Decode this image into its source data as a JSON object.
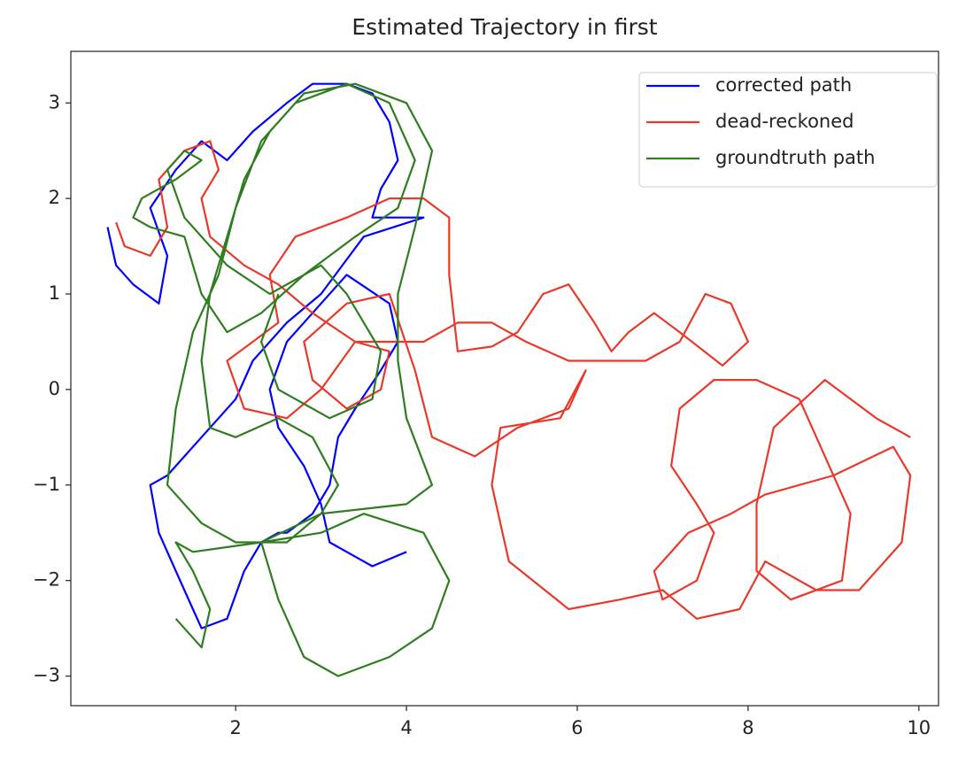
{
  "chart_data": {
    "type": "line",
    "title": "Estimated Trajectory in first",
    "xlim": [
      0.07,
      10.23
    ],
    "ylim": [
      -3.31,
      3.54
    ],
    "xticks": [
      2,
      4,
      6,
      8,
      10
    ],
    "yticks": [
      {
        "value": -3,
        "label": "−3"
      },
      {
        "value": -2,
        "label": "−2"
      },
      {
        "value": -1,
        "label": "−1"
      },
      0,
      1,
      2,
      3
    ],
    "legend": "upper right",
    "series": [
      {
        "name": "corrected path",
        "color": "#0000ff",
        "x": [
          0.5,
          0.6,
          0.8,
          1.1,
          1.2,
          1.0,
          1.3,
          1.6,
          1.9,
          2.2,
          2.6,
          2.9,
          3.3,
          3.6,
          3.8,
          3.9,
          3.7,
          3.6,
          3.8,
          4.2,
          3.5,
          3.0,
          2.6,
          2.2,
          2.0,
          1.8,
          1.6,
          1.4,
          1.2,
          1.0,
          1.1,
          1.3,
          1.5,
          1.6,
          1.9,
          2.1,
          2.3,
          2.5,
          2.6,
          2.9,
          3.1,
          3.2,
          3.4,
          3.7,
          3.9,
          3.8,
          3.3,
          3.0,
          2.6,
          2.4,
          2.5,
          2.8,
          3.0,
          3.1,
          3.6,
          4.0
        ],
        "values": [
          1.7,
          1.3,
          1.1,
          0.9,
          1.4,
          1.9,
          2.3,
          2.6,
          2.4,
          2.7,
          3.0,
          3.2,
          3.2,
          3.1,
          2.8,
          2.4,
          2.1,
          1.8,
          1.8,
          1.8,
          1.6,
          1.0,
          0.7,
          0.3,
          -0.1,
          -0.3,
          -0.5,
          -0.7,
          -0.9,
          -1.0,
          -1.5,
          -1.9,
          -2.3,
          -2.5,
          -2.4,
          -1.9,
          -1.6,
          -1.5,
          -1.5,
          -1.3,
          -1.0,
          -0.5,
          -0.2,
          0.2,
          0.5,
          0.9,
          1.2,
          0.9,
          0.5,
          0.0,
          -0.4,
          -0.8,
          -1.2,
          -1.6,
          -1.85,
          -1.7
        ]
      },
      {
        "name": "dead-reckoned",
        "color": "#e8392b",
        "x": [
          0.6,
          0.7,
          1.0,
          1.2,
          1.1,
          1.4,
          1.7,
          1.8,
          1.6,
          1.7,
          2.1,
          2.5,
          2.9,
          3.4,
          3.9,
          4.2,
          4.6,
          5.0,
          5.4,
          5.9,
          6.3,
          6.8,
          7.2,
          7.5,
          7.8,
          8.0,
          7.7,
          7.2,
          6.9,
          6.6,
          6.4,
          6.2,
          5.9,
          5.6,
          5.3,
          5.0,
          4.6,
          4.5,
          4.5,
          4.2,
          3.8,
          3.3,
          2.7,
          2.4,
          2.5,
          2.2,
          1.9,
          2.1,
          2.6,
          3.0,
          3.4,
          3.8,
          3.7,
          3.3,
          2.9,
          2.8,
          3.3,
          3.8,
          4.1,
          4.3,
          4.8,
          5.3,
          5.9,
          6.1,
          5.8,
          5.1,
          5.0,
          5.2,
          5.9,
          6.5,
          7.0,
          7.4,
          7.9,
          8.2,
          8.8,
          9.3,
          9.8,
          9.9,
          9.7,
          9.0,
          8.2,
          7.8,
          7.3,
          6.9,
          7.0,
          7.4,
          7.6,
          7.4,
          7.1,
          7.2,
          7.6,
          8.1,
          8.6,
          8.9,
          9.2,
          9.1,
          8.5,
          8.1,
          8.1,
          8.3,
          8.9,
          9.5,
          9.9
        ],
        "values": [
          1.75,
          1.5,
          1.4,
          1.7,
          2.2,
          2.5,
          2.6,
          2.3,
          2.0,
          1.6,
          1.3,
          1.1,
          0.8,
          0.5,
          0.5,
          0.5,
          0.7,
          0.7,
          0.5,
          0.3,
          0.3,
          0.3,
          0.5,
          1.0,
          0.9,
          0.5,
          0.25,
          0.6,
          0.8,
          0.6,
          0.4,
          0.7,
          1.1,
          1.0,
          0.6,
          0.45,
          0.4,
          1.2,
          1.8,
          2.0,
          2.0,
          1.8,
          1.6,
          1.2,
          0.7,
          0.5,
          0.3,
          -0.2,
          -0.3,
          0.0,
          0.5,
          0.4,
          0.0,
          -0.2,
          0.1,
          0.5,
          0.9,
          1.0,
          0.2,
          -0.5,
          -0.7,
          -0.4,
          -0.2,
          0.2,
          -0.3,
          -0.4,
          -1.0,
          -1.8,
          -2.3,
          -2.2,
          -2.1,
          -2.4,
          -2.3,
          -1.8,
          -2.1,
          -2.1,
          -1.6,
          -0.9,
          -0.6,
          -0.9,
          -1.1,
          -1.3,
          -1.5,
          -1.9,
          -2.2,
          -2.0,
          -1.5,
          -1.2,
          -0.8,
          -0.2,
          0.1,
          0.1,
          -0.1,
          -0.7,
          -1.3,
          -2.0,
          -2.2,
          -1.9,
          -1.2,
          -0.4,
          0.1,
          -0.3,
          -0.5
        ]
      },
      {
        "name": "groundtruth path",
        "color": "#2e7d1f",
        "x": [
          1.3,
          1.6,
          1.7,
          1.5,
          1.3,
          1.5,
          2.3,
          3.0,
          3.5,
          4.2,
          4.5,
          4.3,
          3.8,
          3.2,
          2.8,
          2.5,
          2.3,
          3.0,
          4.0,
          4.3,
          4.0,
          3.9,
          3.9,
          4.1,
          4.3,
          4.0,
          3.4,
          2.8,
          2.4,
          2.1,
          1.9,
          1.7,
          1.6,
          1.7,
          2.0,
          2.5,
          2.9,
          3.2,
          3.0,
          2.6,
          2.0,
          1.6,
          1.2,
          1.3,
          1.5,
          1.8,
          2.0,
          2.3,
          2.7,
          3.3,
          3.8,
          4.1,
          3.9,
          3.4,
          2.8,
          2.3,
          1.9,
          1.6,
          1.4,
          1.0,
          0.8,
          0.9,
          1.3,
          1.6,
          1.4,
          1.2,
          1.4,
          1.9,
          2.4,
          3.0,
          3.3,
          3.7,
          3.6,
          3.1,
          2.5,
          2.3,
          2.5
        ],
        "values": [
          -2.4,
          -2.7,
          -2.3,
          -1.9,
          -1.6,
          -1.7,
          -1.6,
          -1.5,
          -1.3,
          -1.5,
          -2.0,
          -2.5,
          -2.8,
          -3.0,
          -2.8,
          -2.2,
          -1.6,
          -1.3,
          -1.2,
          -1.0,
          -0.3,
          0.3,
          1.0,
          1.7,
          2.5,
          3.0,
          3.2,
          3.1,
          2.7,
          2.2,
          1.6,
          1.0,
          0.3,
          -0.4,
          -0.5,
          -0.3,
          -0.5,
          -1.0,
          -1.3,
          -1.6,
          -1.6,
          -1.4,
          -1.0,
          -0.2,
          0.6,
          1.2,
          1.9,
          2.6,
          3.0,
          3.2,
          3.0,
          2.4,
          1.9,
          1.6,
          1.2,
          0.8,
          0.6,
          1.0,
          1.6,
          1.7,
          1.8,
          2.0,
          2.2,
          2.4,
          2.5,
          2.3,
          1.8,
          1.3,
          1.0,
          1.3,
          1.0,
          0.4,
          -0.1,
          -0.3,
          0.0,
          0.5,
          1.0
        ]
      }
    ]
  }
}
